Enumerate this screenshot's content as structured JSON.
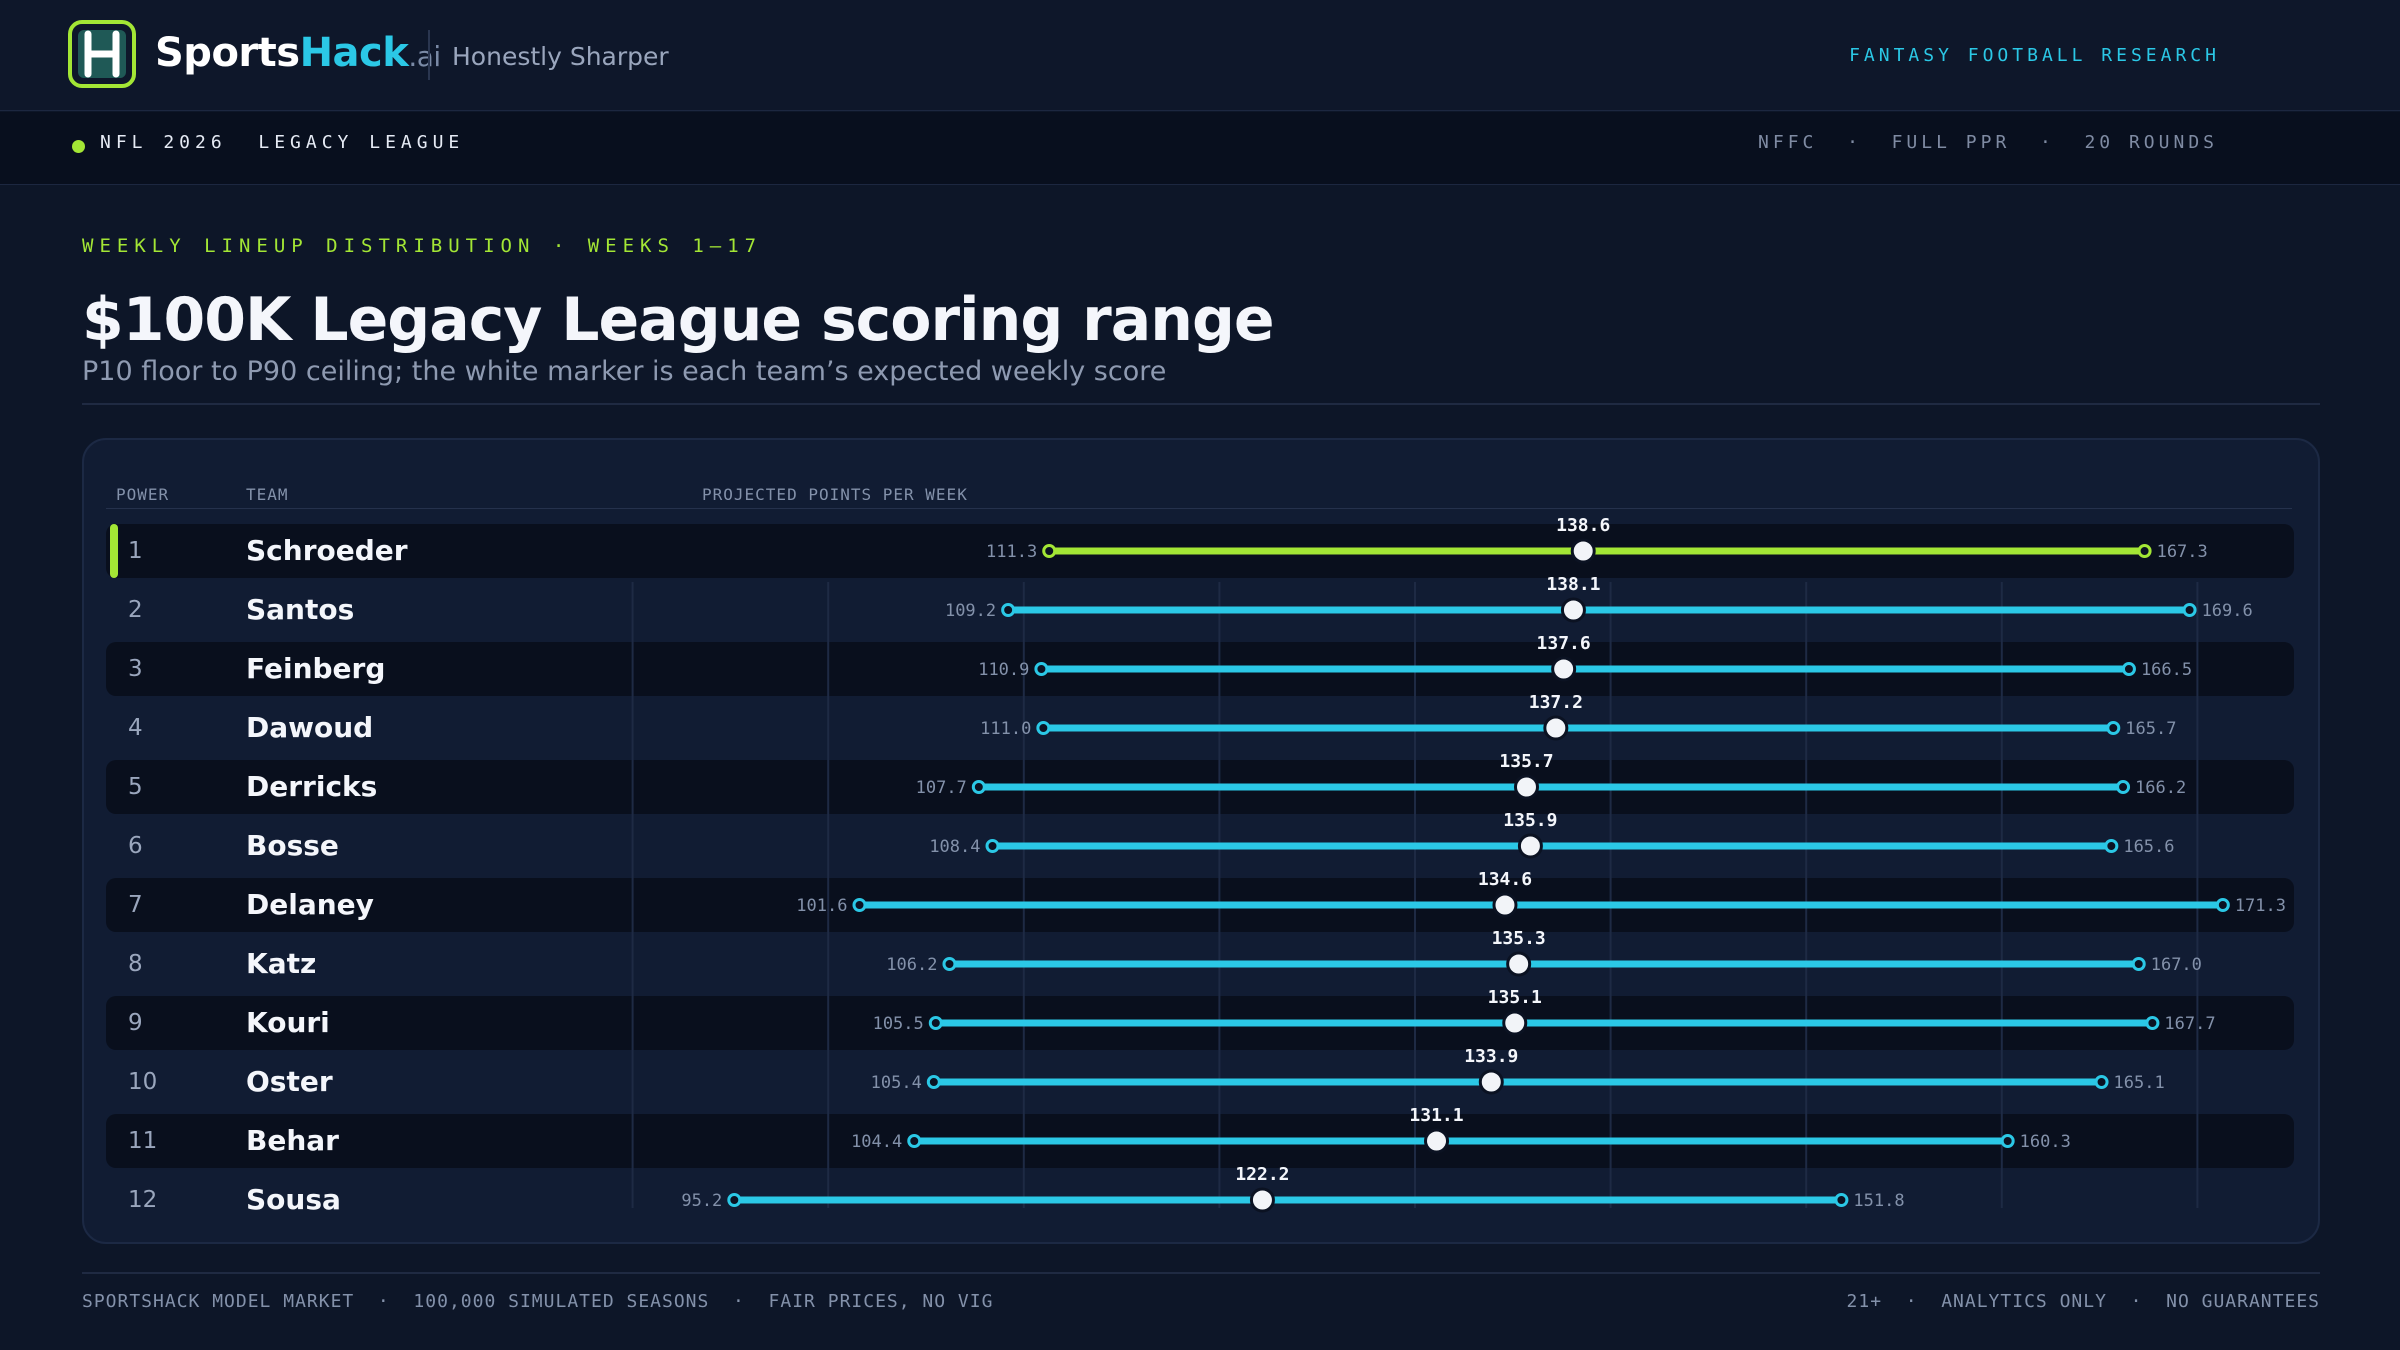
{
  "header": {
    "brand_part1": "Sports",
    "brand_part2": "Hack",
    "brand_part3": ".ai",
    "tagline": "Honestly Sharper",
    "section_label": "FANTASY FOOTBALL RESEARCH"
  },
  "subbar": {
    "league_label": "NFL 2026  LEGACY LEAGUE",
    "meta": "NFFC  ·  FULL PPR  ·  20 ROUNDS"
  },
  "main": {
    "kicker": "WEEKLY LINEUP DISTRIBUTION · WEEKS 1–17",
    "title": "$100K Legacy League scoring range",
    "subtitle": "P10 floor to P90 ceiling; the white marker is each team’s expected weekly score"
  },
  "table": {
    "col_power": "POWER",
    "col_team": "TEAM",
    "col_projection": "PROJECTED POINTS PER WEEK"
  },
  "colors": {
    "leader": "#a3e635",
    "others": "#2bc8e6",
    "marker": "#f2f4f8"
  },
  "chart_data": {
    "type": "range",
    "title": "$100K Legacy League scoring range",
    "xlabel": "PROJECTED POINTS PER WEEK",
    "xlim": [
      80,
      180
    ],
    "grid": true,
    "rows": [
      {
        "rank": "1",
        "team": "Schroeder",
        "low": 111.3,
        "mid": 138.6,
        "high": 167.3
      },
      {
        "rank": "2",
        "team": "Santos",
        "low": 109.2,
        "mid": 138.1,
        "high": 169.6
      },
      {
        "rank": "3",
        "team": "Feinberg",
        "low": 110.9,
        "mid": 137.6,
        "high": 166.5
      },
      {
        "rank": "4",
        "team": "Dawoud",
        "low": 111.0,
        "mid": 137.2,
        "high": 165.7
      },
      {
        "rank": "5",
        "team": "Derricks",
        "low": 107.7,
        "mid": 135.7,
        "high": 166.2
      },
      {
        "rank": "6",
        "team": "Bosse",
        "low": 108.4,
        "mid": 135.9,
        "high": 165.6
      },
      {
        "rank": "7",
        "team": "Delaney",
        "low": 101.6,
        "mid": 134.6,
        "high": 171.3
      },
      {
        "rank": "8",
        "team": "Katz",
        "low": 106.2,
        "mid": 135.3,
        "high": 167.0
      },
      {
        "rank": "9",
        "team": "Kouri",
        "low": 105.5,
        "mid": 135.1,
        "high": 167.7
      },
      {
        "rank": "10",
        "team": "Oster",
        "low": 105.4,
        "mid": 133.9,
        "high": 165.1
      },
      {
        "rank": "11",
        "team": "Behar",
        "low": 104.4,
        "mid": 131.1,
        "high": 160.3
      },
      {
        "rank": "12",
        "team": "Sousa",
        "low": 95.2,
        "mid": 122.2,
        "high": 151.8
      }
    ]
  },
  "footer": {
    "left": "SPORTSHACK MODEL MARKET  ·  100,000 SIMULATED SEASONS  ·  FAIR PRICES, NO VIG",
    "right": "21+  ·  ANALYTICS ONLY  ·  NO GUARANTEES"
  }
}
